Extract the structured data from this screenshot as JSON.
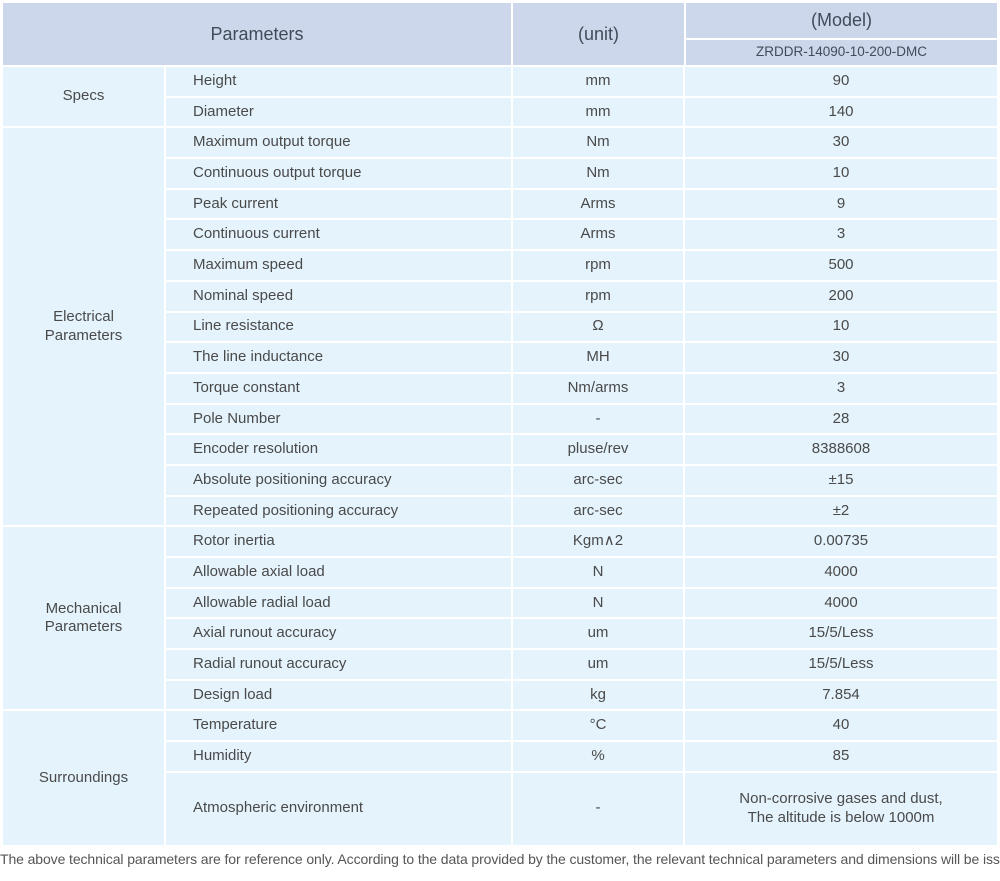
{
  "header": {
    "parameters_label": "Parameters",
    "unit_label": "(unit)",
    "model_label": "(Model)",
    "model_number": "ZRDDR-14090-10-200-DMC"
  },
  "colors": {
    "header_bg": "#ccd7eb",
    "body_bg": "#e4f3fc",
    "text": "#4a4a4a"
  },
  "sections": [
    {
      "category": "Specs",
      "rows": [
        {
          "parameter": "Height",
          "unit": "mm",
          "value": "90"
        },
        {
          "parameter": "Diameter",
          "unit": "mm",
          "value": "140"
        }
      ]
    },
    {
      "category": "Electrical\nParameters",
      "rows": [
        {
          "parameter": "Maximum output torque",
          "unit": "Nm",
          "value": "30"
        },
        {
          "parameter": "Continuous output torque",
          "unit": "Nm",
          "value": "10"
        },
        {
          "parameter": "Peak current",
          "unit": "Arms",
          "value": "9"
        },
        {
          "parameter": "Continuous current",
          "unit": "Arms",
          "value": "3"
        },
        {
          "parameter": "Maximum speed",
          "unit": "rpm",
          "value": "500"
        },
        {
          "parameter": "Nominal speed",
          "unit": "rpm",
          "value": "200"
        },
        {
          "parameter": "Line resistance",
          "unit": "Ω",
          "value": "10"
        },
        {
          "parameter": "The line inductance",
          "unit": "MH",
          "value": "30"
        },
        {
          "parameter": "Torque constant",
          "unit": "Nm/arms",
          "value": "3"
        },
        {
          "parameter": "Pole Number",
          "unit": "-",
          "value": "28"
        },
        {
          "parameter": "Encoder resolution",
          "unit": "pluse/rev",
          "value": "8388608"
        },
        {
          "parameter": "Absolute positioning accuracy",
          "unit": "arc-sec",
          "value": "±15"
        },
        {
          "parameter": "Repeated positioning accuracy",
          "unit": "arc-sec",
          "value": "±2"
        }
      ]
    },
    {
      "category": "Mechanical\nParameters",
      "rows": [
        {
          "parameter": "Rotor inertia",
          "unit": "Kgm∧2",
          "value": "0.00735"
        },
        {
          "parameter": "Allowable axial load",
          "unit": "N",
          "value": "4000"
        },
        {
          "parameter": "Allowable radial load",
          "unit": "N",
          "value": "4000"
        },
        {
          "parameter": "Axial runout accuracy",
          "unit": "um",
          "value": "15/5/Less"
        },
        {
          "parameter": "Radial runout accuracy",
          "unit": "um",
          "value": "15/5/Less"
        },
        {
          "parameter": "Design load",
          "unit": "kg",
          "value": "7.854"
        }
      ]
    },
    {
      "category": "Surroundings",
      "rows": [
        {
          "parameter": "Temperature",
          "unit": "°C",
          "value": "40"
        },
        {
          "parameter": "Humidity",
          "unit": "%",
          "value": "85"
        },
        {
          "parameter": "Atmospheric environment",
          "unit": "-",
          "value": "Non-corrosive gases and dust,\nThe altitude is below 1000m"
        }
      ]
    }
  ],
  "footer_note": "The above technical parameters are for reference only. According to the data provided by the customer, the relevant technical parameters and dimensions will be issued."
}
